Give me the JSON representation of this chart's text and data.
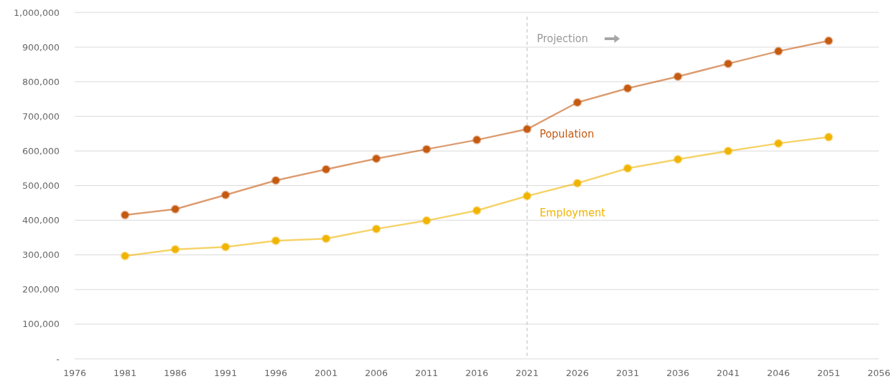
{
  "chart_data": {
    "type": "line",
    "x": [
      1981,
      1986,
      1991,
      1996,
      2001,
      2006,
      2011,
      2016,
      2021,
      2026,
      2031,
      2036,
      2041,
      2046,
      2051
    ],
    "series": [
      {
        "name": "Population",
        "color": "#c55a11",
        "values": [
          415000,
          432000,
          473000,
          515000,
          547000,
          578000,
          605000,
          632000,
          663000,
          740000,
          781000,
          815000,
          852000,
          888000,
          918000
        ]
      },
      {
        "name": "Employment",
        "color": "#f0b400",
        "values": [
          297000,
          316000,
          323000,
          341000,
          347000,
          375000,
          399000,
          428000,
          470000,
          507000,
          550000,
          576000,
          600000,
          622000,
          640000
        ]
      }
    ],
    "xlim": [
      1976,
      2056
    ],
    "xticks": [
      1976,
      1981,
      1986,
      1991,
      1996,
      2001,
      2006,
      2011,
      2016,
      2021,
      2026,
      2031,
      2036,
      2041,
      2046,
      2051,
      2056
    ],
    "ylim": [
      0,
      1000000
    ],
    "yticks": [
      {
        "value": 0,
        "label": "-"
      },
      {
        "value": 100000,
        "label": "100,000"
      },
      {
        "value": 200000,
        "label": "200,000"
      },
      {
        "value": 300000,
        "label": "300,000"
      },
      {
        "value": 400000,
        "label": "400,000"
      },
      {
        "value": 500000,
        "label": "500,000"
      },
      {
        "value": 600000,
        "label": "600,000"
      },
      {
        "value": 700000,
        "label": "700,000"
      },
      {
        "value": 800000,
        "label": "800,000"
      },
      {
        "value": 900000,
        "label": "900,000"
      },
      {
        "value": 1000000,
        "label": "1,000,000"
      }
    ],
    "grid": "y",
    "marker": "circle",
    "line_style": "solid",
    "ref_lines": [
      {
        "axis": "x",
        "value": 2021,
        "label": "Projection",
        "color": "#bbbbbb",
        "line_style": "dashed"
      }
    ]
  }
}
